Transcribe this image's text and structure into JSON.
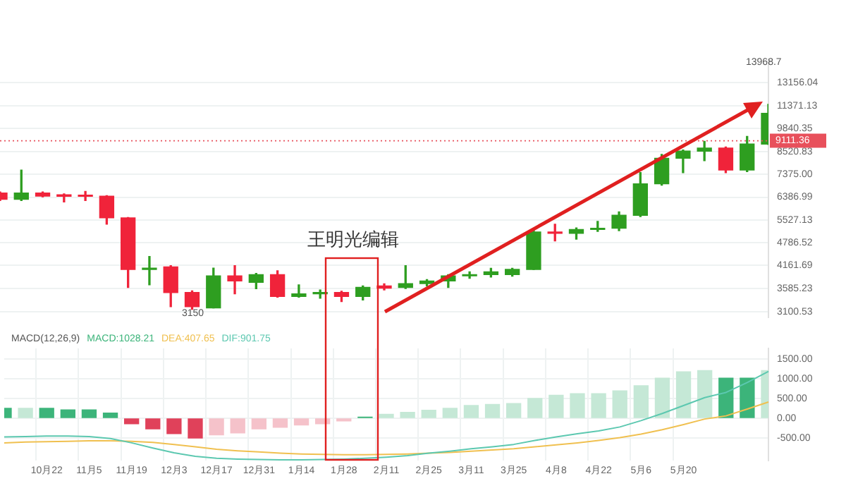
{
  "chart_data": [
    {
      "type": "candlestick",
      "categories": [
        null,
        null,
        null,
        null,
        null,
        null,
        null,
        null,
        null,
        null,
        null,
        null,
        null,
        null,
        null,
        null,
        null,
        null,
        null,
        null,
        null,
        null,
        null,
        null,
        null,
        null,
        null,
        null,
        null,
        null,
        null,
        null,
        null,
        null,
        null,
        null,
        null
      ],
      "ohlc": [
        [
          6555,
          6600,
          6250,
          6300
        ],
        [
          6300,
          7573,
          6250,
          6555
        ],
        [
          6555,
          6600,
          6400,
          6428
        ],
        [
          6480,
          6520,
          6199,
          6420
        ],
        [
          6470,
          6620,
          6250,
          6420
        ],
        [
          6428,
          6450,
          5385,
          5606
        ],
        [
          5606,
          5620,
          3617,
          4051
        ],
        [
          4051,
          4397,
          3676,
          4084
        ],
        [
          4117,
          4150,
          3204,
          3502
        ],
        [
          3502,
          3540,
          3150,
          3204
        ],
        [
          3178,
          4084,
          3178,
          3890
        ],
        [
          3890,
          4150,
          3474,
          3766
        ],
        [
          3736,
          3950,
          3588,
          3922
        ],
        [
          3922,
          4019,
          3400,
          3418
        ],
        [
          3418,
          3676,
          3400,
          3474
        ],
        [
          3474,
          3560,
          3380,
          3502
        ],
        [
          3502,
          3530,
          3310,
          3418
        ],
        [
          3418,
          3650,
          3340,
          3617
        ],
        [
          3650,
          3700,
          3560,
          3600
        ],
        [
          3617,
          4150,
          3590,
          3706
        ],
        [
          3706,
          3800,
          3650,
          3766
        ],
        [
          3766,
          3920,
          3617,
          3890
        ],
        [
          3890,
          3990,
          3830,
          3922
        ],
        [
          3922,
          4080,
          3860,
          3990
        ],
        [
          3922,
          4080,
          3880,
          4051
        ],
        [
          4051,
          5208,
          4051,
          5128
        ],
        [
          5128,
          5385,
          4847,
          5086
        ],
        [
          5086,
          5260,
          4900,
          5208
        ],
        [
          5208,
          5480,
          5150,
          5249
        ],
        [
          5249,
          5820,
          5170,
          5697
        ],
        [
          5697,
          7455,
          5650,
          6945
        ],
        [
          6945,
          8360,
          6890,
          8159
        ],
        [
          8159,
          8600,
          7455,
          8537
        ],
        [
          8537,
          9074,
          8033,
          8706
        ],
        [
          8706,
          8760,
          7455,
          7573
        ],
        [
          7573,
          9367,
          7500,
          8925
        ],
        [
          8925,
          11460,
          8900,
          10835
        ]
      ],
      "colors": [
        "#f0233a",
        "#2e9e20",
        "#f0233a",
        "#f0233a",
        "#f0233a",
        "#f0233a",
        "#f0233a",
        "#2e9e20",
        "#f0233a",
        "#f0233a",
        "#2e9e20",
        "#f0233a",
        "#2e9e20",
        "#f0233a",
        "#2e9e20",
        "#2e9e20",
        "#f0233a",
        "#2e9e20",
        "#f0233a",
        "#2e9e20",
        "#2e9e20",
        "#2e9e20",
        "#2e9e20",
        "#2e9e20",
        "#2e9e20",
        "#2e9e20",
        "#f0233a",
        "#2e9e20",
        "#2e9e20",
        "#2e9e20",
        "#2e9e20",
        "#2e9e20",
        "#2e9e20",
        "#2e9e20",
        "#f0233a",
        "#2e9e20",
        "#2e9e20"
      ],
      "log": true,
      "ylim": [
        3000,
        15200
      ],
      "yticks": [
        {
          "value": 13156.04,
          "label": "13156.04"
        },
        11371.13,
        9840.35,
        8520.83,
        {
          "value": 7375,
          "label": "7375.00"
        },
        6386.99,
        5527.13,
        4786.52,
        4161.69,
        3585.23,
        3100.53
      ],
      "tick_labels": "y",
      "grid": "y",
      "ref_lines": [
        {
          "axis": "y",
          "value": 9111.36,
          "label": "9111.36",
          "color": "#e8505b",
          "line_style": "dotted"
        }
      ],
      "annotations": [
        "王明光编辑",
        "13968.7",
        "3150"
      ]
    },
    {
      "type": "bar",
      "title": "MACD(12,26,9)",
      "categories": [
        null,
        null,
        "10月22",
        null,
        "11月5",
        null,
        "11月19",
        null,
        "12月3",
        null,
        "12月17",
        null,
        "12月31",
        null,
        "1月14",
        null,
        "1月28",
        null,
        "2月11",
        null,
        "2月25",
        null,
        "3月11",
        null,
        "3月25",
        null,
        "4月8",
        null,
        "4月22",
        null,
        "5月6",
        null,
        "5月20",
        null,
        null,
        null,
        null
      ],
      "series": [
        {
          "name": "DIF:901.75",
          "type": "line",
          "color": "#5cc8b0",
          "values": [
            -470,
            -460,
            -450,
            -450,
            -460,
            -510,
            -620,
            -750,
            -870,
            -960,
            -1010,
            -1030,
            -1040,
            -1050,
            -1050,
            -1040,
            -1030,
            -1010,
            -980,
            -940,
            -880,
            -830,
            -770,
            -720,
            -660,
            -560,
            -470,
            -390,
            -320,
            -220,
            -60,
            120,
            320,
            520,
            650,
            900,
            1180
          ]
        },
        {
          "name": "DEA:407.65",
          "type": "line",
          "color": "#f0c050",
          "values": [
            -620,
            -600,
            -590,
            -580,
            -570,
            -570,
            -580,
            -610,
            -660,
            -720,
            -780,
            -820,
            -850,
            -880,
            -900,
            -910,
            -920,
            -920,
            -910,
            -900,
            -880,
            -860,
            -830,
            -800,
            -770,
            -720,
            -670,
            -620,
            -560,
            -490,
            -400,
            -290,
            -160,
            -20,
            60,
            230,
            410
          ]
        },
        {
          "name": "MACD:1028.21",
          "type": "bar",
          "color": "#3cb47a",
          "values": [
            250,
            250,
            250,
            210,
            210,
            130,
            -140,
            -270,
            -390,
            -500,
            -420,
            -370,
            -270,
            -230,
            -170,
            -140,
            -70,
            30,
            100,
            150,
            200,
            250,
            320,
            350,
            370,
            500,
            580,
            620,
            620,
            690,
            820,
            1010,
            1170,
            1200,
            1010,
            1010,
            1200
          ],
          "colors": [
            "#3cb47a",
            "#c5e8d6",
            "#3cb47a",
            "#3cb47a",
            "#3cb47a",
            "#3cb47a",
            "#e0415a",
            "#e0415a",
            "#e0415a",
            "#e0415a",
            "#f5c2ca",
            "#f5c2ca",
            "#f5c2ca",
            "#f5c2ca",
            "#f5c2ca",
            "#f5c2ca",
            "#f5c2ca",
            "#3cb47a",
            "#c5e8d6",
            "#c5e8d6",
            "#c5e8d6",
            "#c5e8d6",
            "#c5e8d6",
            "#c5e8d6",
            "#c5e8d6",
            "#c5e8d6",
            "#c5e8d6",
            "#c5e8d6",
            "#c5e8d6",
            "#c5e8d6",
            "#c5e8d6",
            "#c5e8d6",
            "#c5e8d6",
            "#c5e8d6",
            "#3cb47a",
            "#3cb47a",
            "#c5e8d6"
          ]
        }
      ],
      "ylim": [
        -1070,
        1760
      ],
      "yticks": [
        {
          "value": -500,
          "label": "-500.00"
        },
        {
          "value": 0,
          "label": "0.00"
        },
        {
          "value": 500,
          "label": "500.00"
        },
        {
          "value": 1000,
          "label": "1000.00"
        },
        {
          "value": 1500,
          "label": "1500.00"
        }
      ],
      "legend": "top left",
      "marker": "none",
      "grid": true
    }
  ]
}
